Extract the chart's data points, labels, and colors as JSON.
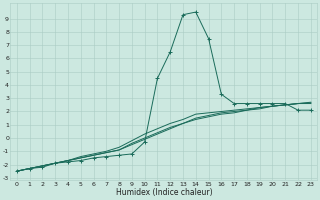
{
  "xlabel": "Humidex (Indice chaleur)",
  "bg_color": "#cce8e0",
  "line_color": "#1a6b5a",
  "grid_color": "#aaccc4",
  "xlim": [
    -0.5,
    23.5
  ],
  "ylim": [
    -3.2,
    10.2
  ],
  "xticks": [
    0,
    1,
    2,
    3,
    4,
    5,
    6,
    7,
    8,
    9,
    10,
    11,
    12,
    13,
    14,
    15,
    16,
    17,
    18,
    19,
    20,
    21,
    22,
    23
  ],
  "yticks": [
    -3,
    -2,
    -1,
    0,
    1,
    2,
    3,
    4,
    5,
    6,
    7,
    8,
    9
  ],
  "s1_x": [
    0,
    1,
    2,
    3,
    4,
    5,
    6,
    7,
    8,
    9,
    10,
    11,
    12,
    13,
    14,
    15,
    16,
    17,
    18,
    19,
    20,
    21,
    22,
    23
  ],
  "s1_y": [
    -2.5,
    -2.3,
    -2.2,
    -1.9,
    -1.8,
    -1.7,
    -1.5,
    -1.4,
    -1.3,
    -1.2,
    -0.3,
    4.5,
    6.5,
    9.3,
    9.5,
    7.5,
    3.3,
    2.6,
    2.6,
    2.6,
    2.6,
    2.6,
    2.1,
    2.1
  ],
  "s2_x": [
    0,
    1,
    2,
    3,
    4,
    5,
    6,
    7,
    8,
    9,
    10,
    11,
    12,
    13,
    14,
    15,
    16,
    17,
    18,
    19,
    20,
    21,
    22,
    23
  ],
  "s2_y": [
    -2.5,
    -2.3,
    -2.1,
    -1.9,
    -1.7,
    -1.5,
    -1.3,
    -1.1,
    -0.9,
    -0.5,
    -0.1,
    0.3,
    0.7,
    1.1,
    1.4,
    1.6,
    1.8,
    1.9,
    2.1,
    2.2,
    2.4,
    2.5,
    2.6,
    2.6
  ],
  "s3_x": [
    0,
    1,
    2,
    3,
    4,
    5,
    6,
    7,
    8,
    9,
    10,
    11,
    12,
    13,
    14,
    15,
    16,
    17,
    18,
    19,
    20,
    21,
    22,
    23
  ],
  "s3_y": [
    -2.5,
    -2.3,
    -2.1,
    -1.9,
    -1.7,
    -1.5,
    -1.3,
    -1.1,
    -0.9,
    -0.4,
    0.0,
    0.4,
    0.8,
    1.1,
    1.5,
    1.7,
    1.9,
    2.0,
    2.1,
    2.3,
    2.4,
    2.5,
    2.6,
    2.65
  ],
  "s4_x": [
    0,
    1,
    2,
    3,
    4,
    5,
    6,
    7,
    8,
    9,
    10,
    11,
    12,
    13,
    14,
    15,
    16,
    17,
    18,
    19,
    20,
    21,
    22,
    23
  ],
  "s4_y": [
    -2.5,
    -2.3,
    -2.1,
    -1.9,
    -1.7,
    -1.4,
    -1.2,
    -1.0,
    -0.7,
    -0.2,
    0.3,
    0.7,
    1.1,
    1.4,
    1.8,
    1.9,
    2.0,
    2.1,
    2.2,
    2.3,
    2.4,
    2.5,
    2.6,
    2.7
  ]
}
